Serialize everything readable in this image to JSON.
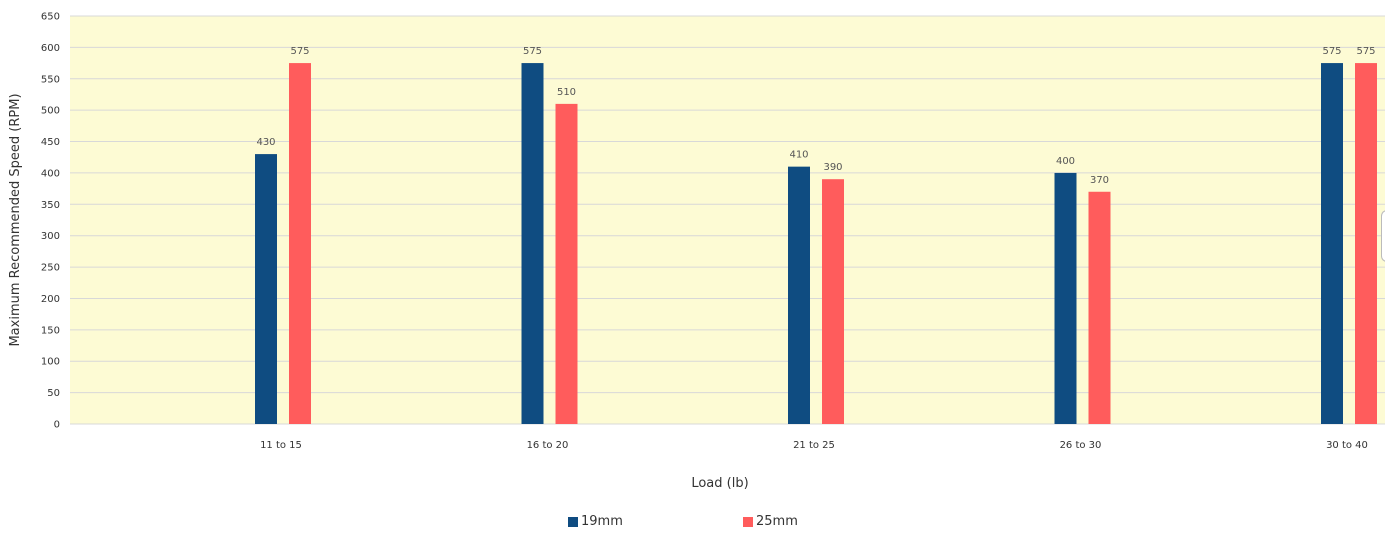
{
  "chart_data": {
    "type": "bar",
    "categories": [
      "11 to 15",
      "16 to 20",
      "21 to 25",
      "26 to 30",
      "30 to 40"
    ],
    "series": [
      {
        "name": "19mm",
        "color": "#0f4c81",
        "values": [
          430,
          575,
          410,
          400,
          575
        ]
      },
      {
        "name": "25mm",
        "color": "#ff5c5c",
        "values": [
          575,
          510,
          390,
          370,
          575
        ]
      }
    ],
    "xlabel": "Load (lb)",
    "ylabel": "Maximum Recommended Speed (RPM)",
    "ylim": [
      0,
      650
    ],
    "yticks": [
      0,
      50,
      100,
      150,
      200,
      250,
      300,
      350,
      400,
      450,
      500,
      550,
      600,
      650
    ],
    "grid": true,
    "plot_background": "#fdfbd4",
    "legend_position": "bottom-center"
  }
}
